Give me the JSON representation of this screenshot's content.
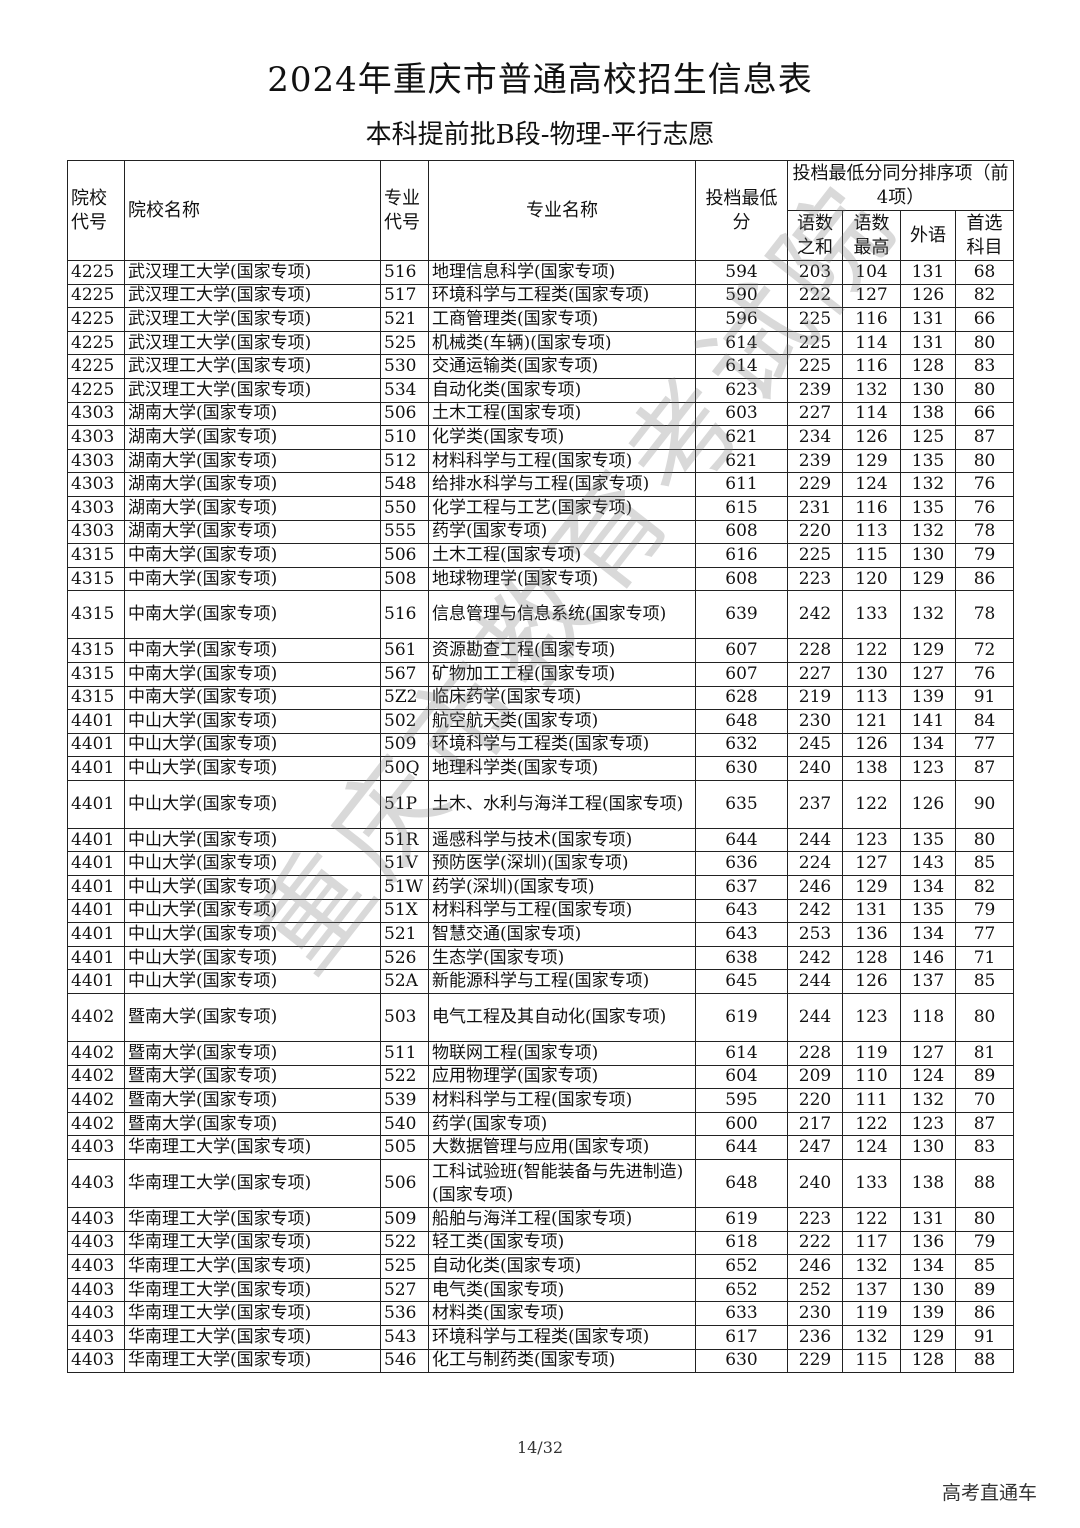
{
  "title": "2024年重庆市普通高校招生信息表",
  "subtitle": "本科提前批B段-物理-平行志愿",
  "headers": {
    "school_code": "院校代号",
    "school_name": "院校名称",
    "major_code": "专业代号",
    "major_name": "专业名称",
    "min_score": "投档最低分",
    "tiebreak_group": "投档最低分同分排序项（前4项）",
    "tiebreak": [
      "语数之和",
      "语数最高",
      "外语",
      "首选科目"
    ]
  },
  "rows": [
    [
      "4225",
      "武汉理工大学(国家专项)",
      "516",
      "地理信息科学(国家专项)",
      "594",
      "203",
      "104",
      "131",
      "68"
    ],
    [
      "4225",
      "武汉理工大学(国家专项)",
      "517",
      "环境科学与工程类(国家专项)",
      "590",
      "222",
      "127",
      "126",
      "82"
    ],
    [
      "4225",
      "武汉理工大学(国家专项)",
      "521",
      "工商管理类(国家专项)",
      "596",
      "225",
      "116",
      "131",
      "66"
    ],
    [
      "4225",
      "武汉理工大学(国家专项)",
      "525",
      "机械类(车辆)(国家专项)",
      "614",
      "225",
      "114",
      "131",
      "80"
    ],
    [
      "4225",
      "武汉理工大学(国家专项)",
      "530",
      "交通运输类(国家专项)",
      "614",
      "225",
      "116",
      "128",
      "83"
    ],
    [
      "4225",
      "武汉理工大学(国家专项)",
      "534",
      "自动化类(国家专项)",
      "623",
      "239",
      "132",
      "130",
      "80"
    ],
    [
      "4303",
      "湖南大学(国家专项)",
      "506",
      "土木工程(国家专项)",
      "603",
      "227",
      "114",
      "138",
      "66"
    ],
    [
      "4303",
      "湖南大学(国家专项)",
      "510",
      "化学类(国家专项)",
      "621",
      "234",
      "126",
      "125",
      "87"
    ],
    [
      "4303",
      "湖南大学(国家专项)",
      "512",
      "材料科学与工程(国家专项)",
      "621",
      "239",
      "129",
      "135",
      "80"
    ],
    [
      "4303",
      "湖南大学(国家专项)",
      "548",
      "给排水科学与工程(国家专项)",
      "611",
      "229",
      "124",
      "132",
      "76"
    ],
    [
      "4303",
      "湖南大学(国家专项)",
      "550",
      "化学工程与工艺(国家专项)",
      "615",
      "231",
      "116",
      "135",
      "76"
    ],
    [
      "4303",
      "湖南大学(国家专项)",
      "555",
      "药学(国家专项)",
      "608",
      "220",
      "113",
      "132",
      "78"
    ],
    [
      "4315",
      "中南大学(国家专项)",
      "506",
      "土木工程(国家专项)",
      "616",
      "225",
      "115",
      "130",
      "79"
    ],
    [
      "4315",
      "中南大学(国家专项)",
      "508",
      "地球物理学(国家专项)",
      "608",
      "223",
      "120",
      "129",
      "86"
    ],
    [
      "4315",
      "中南大学(国家专项)",
      "516",
      "信息管理与信息系统(国家专项)",
      "639",
      "242",
      "133",
      "132",
      "78"
    ],
    [
      "4315",
      "中南大学(国家专项)",
      "561",
      "资源勘查工程(国家专项)",
      "607",
      "228",
      "122",
      "129",
      "72"
    ],
    [
      "4315",
      "中南大学(国家专项)",
      "567",
      "矿物加工工程(国家专项)",
      "607",
      "227",
      "130",
      "127",
      "76"
    ],
    [
      "4315",
      "中南大学(国家专项)",
      "5Z2",
      "临床药学(国家专项)",
      "628",
      "219",
      "113",
      "139",
      "91"
    ],
    [
      "4401",
      "中山大学(国家专项)",
      "502",
      "航空航天类(国家专项)",
      "648",
      "230",
      "121",
      "141",
      "84"
    ],
    [
      "4401",
      "中山大学(国家专项)",
      "509",
      "环境科学与工程类(国家专项)",
      "632",
      "245",
      "126",
      "134",
      "77"
    ],
    [
      "4401",
      "中山大学(国家专项)",
      "50Q",
      "地理科学类(国家专项)",
      "630",
      "240",
      "138",
      "123",
      "87"
    ],
    [
      "4401",
      "中山大学(国家专项)",
      "51P",
      "土木、水利与海洋工程(国家专项)",
      "635",
      "237",
      "122",
      "126",
      "90"
    ],
    [
      "4401",
      "中山大学(国家专项)",
      "51R",
      "遥感科学与技术(国家专项)",
      "644",
      "244",
      "123",
      "135",
      "80"
    ],
    [
      "4401",
      "中山大学(国家专项)",
      "51V",
      "预防医学(深圳)(国家专项)",
      "636",
      "224",
      "127",
      "143",
      "85"
    ],
    [
      "4401",
      "中山大学(国家专项)",
      "51W",
      "药学(深圳)(国家专项)",
      "637",
      "246",
      "129",
      "134",
      "82"
    ],
    [
      "4401",
      "中山大学(国家专项)",
      "51X",
      "材料科学与工程(国家专项)",
      "643",
      "242",
      "131",
      "135",
      "79"
    ],
    [
      "4401",
      "中山大学(国家专项)",
      "521",
      "智慧交通(国家专项)",
      "643",
      "253",
      "136",
      "134",
      "77"
    ],
    [
      "4401",
      "中山大学(国家专项)",
      "526",
      "生态学(国家专项)",
      "638",
      "242",
      "128",
      "146",
      "71"
    ],
    [
      "4401",
      "中山大学(国家专项)",
      "52A",
      "新能源科学与工程(国家专项)",
      "645",
      "244",
      "126",
      "137",
      "85"
    ],
    [
      "4402",
      "暨南大学(国家专项)",
      "503",
      "电气工程及其自动化(国家专项)",
      "619",
      "244",
      "123",
      "118",
      "80"
    ],
    [
      "4402",
      "暨南大学(国家专项)",
      "511",
      "物联网工程(国家专项)",
      "614",
      "228",
      "119",
      "127",
      "81"
    ],
    [
      "4402",
      "暨南大学(国家专项)",
      "522",
      "应用物理学(国家专项)",
      "604",
      "209",
      "110",
      "124",
      "89"
    ],
    [
      "4402",
      "暨南大学(国家专项)",
      "539",
      "材料科学与工程(国家专项)",
      "595",
      "220",
      "111",
      "132",
      "70"
    ],
    [
      "4402",
      "暨南大学(国家专项)",
      "540",
      "药学(国家专项)",
      "600",
      "217",
      "122",
      "123",
      "87"
    ],
    [
      "4403",
      "华南理工大学(国家专项)",
      "505",
      "大数据管理与应用(国家专项)",
      "644",
      "247",
      "124",
      "130",
      "83"
    ],
    [
      "4403",
      "华南理工大学(国家专项)",
      "506",
      "工科试验班(智能装备与先进制造)(国家专项)",
      "648",
      "240",
      "133",
      "138",
      "88"
    ],
    [
      "4403",
      "华南理工大学(国家专项)",
      "509",
      "船舶与海洋工程(国家专项)",
      "619",
      "223",
      "122",
      "131",
      "80"
    ],
    [
      "4403",
      "华南理工大学(国家专项)",
      "522",
      "轻工类(国家专项)",
      "618",
      "222",
      "117",
      "136",
      "79"
    ],
    [
      "4403",
      "华南理工大学(国家专项)",
      "525",
      "自动化类(国家专项)",
      "652",
      "246",
      "132",
      "134",
      "85"
    ],
    [
      "4403",
      "华南理工大学(国家专项)",
      "527",
      "电气类(国家专项)",
      "652",
      "252",
      "137",
      "130",
      "89"
    ],
    [
      "4403",
      "华南理工大学(国家专项)",
      "536",
      "材料类(国家专项)",
      "633",
      "230",
      "119",
      "139",
      "86"
    ],
    [
      "4403",
      "华南理工大学(国家专项)",
      "543",
      "环境科学与工程类(国家专项)",
      "617",
      "236",
      "132",
      "129",
      "91"
    ],
    [
      "4403",
      "华南理工大学(国家专项)",
      "546",
      "化工与制药类(国家专项)",
      "630",
      "229",
      "115",
      "128",
      "88"
    ]
  ],
  "watermark": "重庆市教育考试院",
  "page_number": "14/32",
  "brand": "高考直通车"
}
